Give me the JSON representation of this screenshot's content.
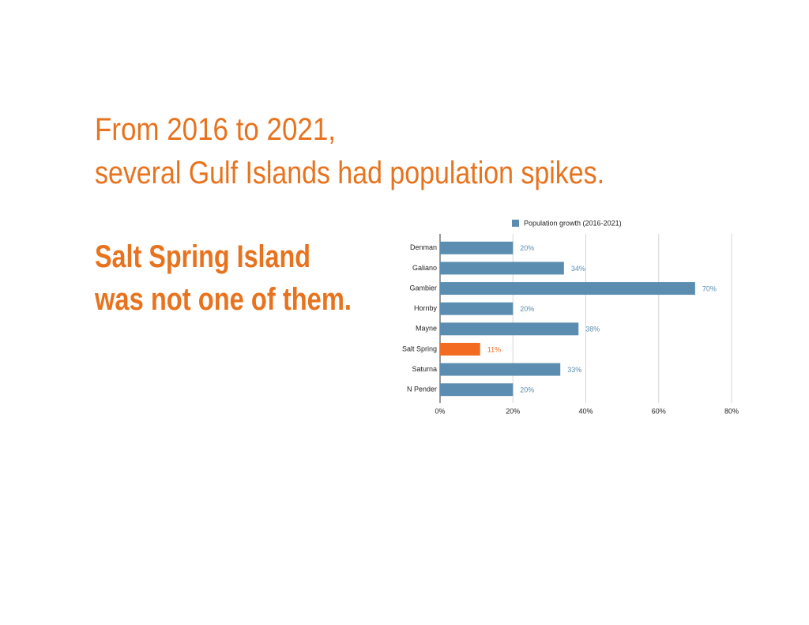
{
  "headline": [
    "From 2016 to 2021,",
    "several Gulf Islands had population spikes."
  ],
  "subheadline": [
    "Salt Spring Island",
    "was not one of them."
  ],
  "chart_data": {
    "type": "bar",
    "orientation": "horizontal",
    "categories": [
      "Denman",
      "Galiano",
      "Gambier",
      "Hornby",
      "Mayne",
      "Salt Spring",
      "Saturna",
      "N Pender"
    ],
    "series": [
      {
        "name": "Population growth (2016-2021)",
        "color": "#5b8db0",
        "values": [
          20,
          34,
          70,
          20,
          38,
          11,
          33,
          20
        ],
        "value_labels": [
          "20%",
          "34%",
          "70%",
          "20%",
          "38%",
          "11%",
          "33%",
          "20%"
        ],
        "bar_colors": [
          "#5b8db0",
          "#5b8db0",
          "#5b8db0",
          "#5b8db0",
          "#5b8db0",
          "#f26b21",
          "#5b8db0",
          "#5b8db0"
        ]
      }
    ],
    "xlim": [
      0,
      80
    ],
    "xticks": [
      {
        "value": 0,
        "label": "0%"
      },
      {
        "value": 20,
        "label": "20%"
      },
      {
        "value": 40,
        "label": "40%"
      },
      {
        "value": 60,
        "label": "60%"
      },
      {
        "value": 80,
        "label": "80%"
      }
    ],
    "grid": true,
    "legend": "top"
  }
}
